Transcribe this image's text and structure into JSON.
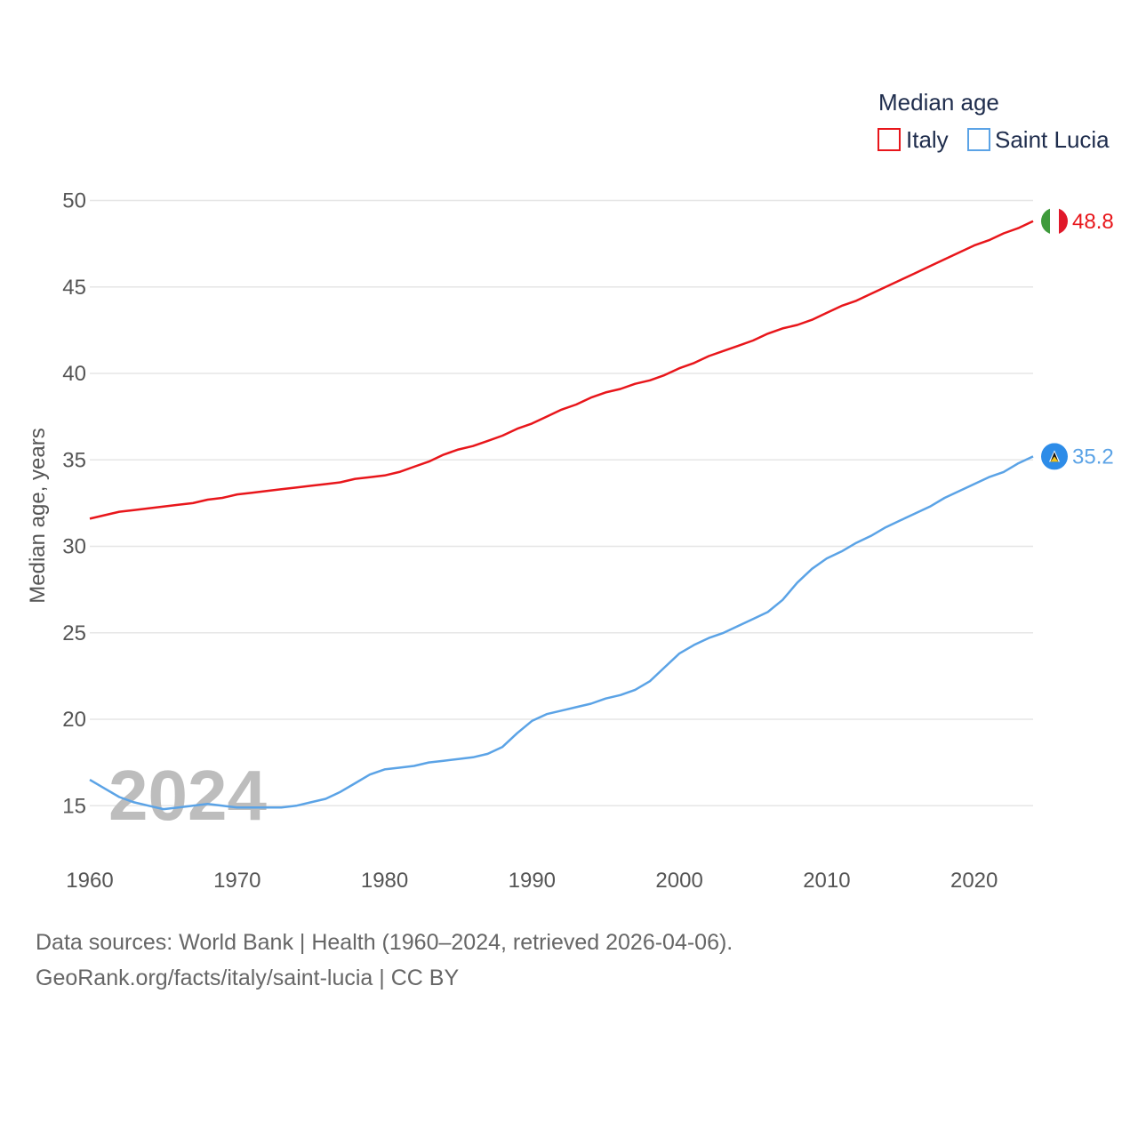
{
  "chart_data": {
    "type": "line",
    "legend_title": "Median age",
    "ylabel": "Median age, years",
    "xlabel": "",
    "ylim": [
      12,
      51
    ],
    "xlim": [
      1960,
      2024
    ],
    "yticks": [
      15,
      20,
      25,
      30,
      35,
      40,
      45,
      50
    ],
    "xticks": [
      1960,
      1970,
      1980,
      1990,
      2000,
      2010,
      2020
    ],
    "year_watermark": "2024",
    "x": [
      1960,
      1961,
      1962,
      1963,
      1964,
      1965,
      1966,
      1967,
      1968,
      1969,
      1970,
      1971,
      1972,
      1973,
      1974,
      1975,
      1976,
      1977,
      1978,
      1979,
      1980,
      1981,
      1982,
      1983,
      1984,
      1985,
      1986,
      1987,
      1988,
      1989,
      1990,
      1991,
      1992,
      1993,
      1994,
      1995,
      1996,
      1997,
      1998,
      1999,
      2000,
      2001,
      2002,
      2003,
      2004,
      2005,
      2006,
      2007,
      2008,
      2009,
      2010,
      2011,
      2012,
      2013,
      2014,
      2015,
      2016,
      2017,
      2018,
      2019,
      2020,
      2021,
      2022,
      2023,
      2024
    ],
    "series": [
      {
        "name": "Italy",
        "color": "#e8161b",
        "end_label": "48.8",
        "values": [
          31.6,
          31.8,
          32.0,
          32.1,
          32.2,
          32.3,
          32.4,
          32.5,
          32.7,
          32.8,
          33.0,
          33.1,
          33.2,
          33.3,
          33.4,
          33.5,
          33.6,
          33.7,
          33.9,
          34.0,
          34.1,
          34.3,
          34.6,
          34.9,
          35.3,
          35.6,
          35.8,
          36.1,
          36.4,
          36.8,
          37.1,
          37.5,
          37.9,
          38.2,
          38.6,
          38.9,
          39.1,
          39.4,
          39.6,
          39.9,
          40.3,
          40.6,
          41.0,
          41.3,
          41.6,
          41.9,
          42.3,
          42.6,
          42.8,
          43.1,
          43.5,
          43.9,
          44.2,
          44.6,
          45.0,
          45.4,
          45.8,
          46.2,
          46.6,
          47.0,
          47.4,
          47.7,
          48.1,
          48.4,
          48.8
        ]
      },
      {
        "name": "Saint Lucia",
        "color": "#5ba3e6",
        "end_label": "35.2",
        "values": [
          16.5,
          16.0,
          15.5,
          15.2,
          15.0,
          14.8,
          14.9,
          15.0,
          15.1,
          15.0,
          14.9,
          14.9,
          14.9,
          14.9,
          15.0,
          15.2,
          15.4,
          15.8,
          16.3,
          16.8,
          17.1,
          17.2,
          17.3,
          17.5,
          17.6,
          17.7,
          17.8,
          18.0,
          18.4,
          19.2,
          19.9,
          20.3,
          20.5,
          20.7,
          20.9,
          21.2,
          21.4,
          21.7,
          22.2,
          23.0,
          23.8,
          24.3,
          24.7,
          25.0,
          25.4,
          25.8,
          26.2,
          26.9,
          27.9,
          28.7,
          29.3,
          29.7,
          30.2,
          30.6,
          31.1,
          31.5,
          31.9,
          32.3,
          32.8,
          33.2,
          33.6,
          34.0,
          34.3,
          34.8,
          35.2
        ]
      }
    ]
  },
  "footer": {
    "line1": "Data sources: World Bank | Health (1960–2024, retrieved 2026-04-06).",
    "line2": "GeoRank.org/facts/italy/saint-lucia | CC BY"
  }
}
